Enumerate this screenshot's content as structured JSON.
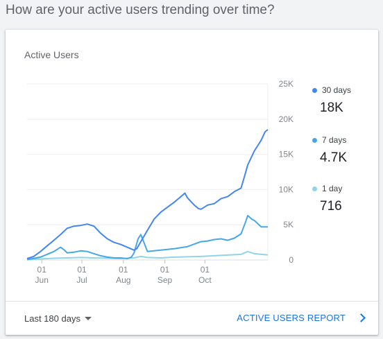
{
  "question": "How are your active users trending over time?",
  "card": {
    "title": "Active Users",
    "range_label": "Last 180 days",
    "report_link": "ACTIVE USERS REPORT"
  },
  "legend": [
    {
      "name": "30 days",
      "value": "18K",
      "color": "#4285f4"
    },
    {
      "name": "7 days",
      "value": "4.7K",
      "color": "#46a7e8"
    },
    {
      "name": "1 day",
      "value": "716",
      "color": "#8fd4e8"
    }
  ],
  "chart_data": {
    "type": "line",
    "title": "Active Users",
    "ylim": [
      0,
      25000
    ],
    "y_ticks": [
      0,
      5000,
      10000,
      15000,
      20000,
      25000
    ],
    "y_tick_labels": [
      "0",
      "5K",
      "10K",
      "15K",
      "20K",
      "25K"
    ],
    "x_tick_labels": [
      {
        "x": 11,
        "day": "01",
        "month": "Jun"
      },
      {
        "x": 41,
        "day": "01",
        "month": "Jul"
      },
      {
        "x": 72,
        "day": "01",
        "month": "Aug"
      },
      {
        "x": 103,
        "day": "01",
        "month": "Sep"
      },
      {
        "x": 133,
        "day": "01",
        "month": "Oct"
      }
    ],
    "x_unit": "day index",
    "xlim": [
      0,
      180
    ],
    "grid": true,
    "legend_position": "right",
    "series": [
      {
        "name": "30 days",
        "color": "#4285f4",
        "points": [
          [
            0,
            200
          ],
          [
            5,
            500
          ],
          [
            10,
            1200
          ],
          [
            15,
            2000
          ],
          [
            20,
            2800
          ],
          [
            25,
            3600
          ],
          [
            30,
            4500
          ],
          [
            35,
            4800
          ],
          [
            40,
            4900
          ],
          [
            45,
            5100
          ],
          [
            50,
            4800
          ],
          [
            55,
            3800
          ],
          [
            60,
            3000
          ],
          [
            65,
            2500
          ],
          [
            70,
            2200
          ],
          [
            75,
            1800
          ],
          [
            80,
            1400
          ],
          [
            82,
            1600
          ],
          [
            85,
            2600
          ],
          [
            90,
            4200
          ],
          [
            95,
            5800
          ],
          [
            100,
            6800
          ],
          [
            105,
            7500
          ],
          [
            110,
            8200
          ],
          [
            115,
            9000
          ],
          [
            118,
            9500
          ],
          [
            120,
            8800
          ],
          [
            125,
            7800
          ],
          [
            128,
            7300
          ],
          [
            130,
            7200
          ],
          [
            135,
            7800
          ],
          [
            140,
            8000
          ],
          [
            145,
            8700
          ],
          [
            150,
            9000
          ],
          [
            155,
            9700
          ],
          [
            160,
            10200
          ],
          [
            162,
            11500
          ],
          [
            165,
            13500
          ],
          [
            170,
            15500
          ],
          [
            175,
            17000
          ],
          [
            178,
            18200
          ],
          [
            180,
            18500
          ]
        ]
      },
      {
        "name": "7 days",
        "color": "#46a7e8",
        "points": [
          [
            0,
            50
          ],
          [
            10,
            400
          ],
          [
            15,
            800
          ],
          [
            20,
            1200
          ],
          [
            25,
            1800
          ],
          [
            28,
            1400
          ],
          [
            30,
            1000
          ],
          [
            35,
            1100
          ],
          [
            40,
            1300
          ],
          [
            45,
            1200
          ],
          [
            50,
            900
          ],
          [
            55,
            600
          ],
          [
            60,
            400
          ],
          [
            65,
            300
          ],
          [
            70,
            300
          ],
          [
            75,
            200
          ],
          [
            78,
            400
          ],
          [
            80,
            1000
          ],
          [
            83,
            3000
          ],
          [
            85,
            3600
          ],
          [
            88,
            2200
          ],
          [
            90,
            1200
          ],
          [
            95,
            1300
          ],
          [
            100,
            1400
          ],
          [
            110,
            1600
          ],
          [
            120,
            1900
          ],
          [
            130,
            2600
          ],
          [
            135,
            2700
          ],
          [
            140,
            2900
          ],
          [
            145,
            3000
          ],
          [
            150,
            2800
          ],
          [
            155,
            3100
          ],
          [
            160,
            3700
          ],
          [
            163,
            5200
          ],
          [
            165,
            6300
          ],
          [
            168,
            5800
          ],
          [
            170,
            5600
          ],
          [
            175,
            4700
          ],
          [
            180,
            4700
          ]
        ]
      },
      {
        "name": "1 day",
        "color": "#8fd4e8",
        "points": [
          [
            0,
            50
          ],
          [
            10,
            150
          ],
          [
            20,
            250
          ],
          [
            30,
            300
          ],
          [
            40,
            350
          ],
          [
            50,
            300
          ],
          [
            60,
            250
          ],
          [
            70,
            200
          ],
          [
            80,
            300
          ],
          [
            85,
            500
          ],
          [
            90,
            350
          ],
          [
            100,
            300
          ],
          [
            110,
            400
          ],
          [
            120,
            450
          ],
          [
            130,
            500
          ],
          [
            140,
            600
          ],
          [
            150,
            700
          ],
          [
            160,
            800
          ],
          [
            165,
            1200
          ],
          [
            170,
            900
          ],
          [
            175,
            800
          ],
          [
            180,
            716
          ]
        ]
      }
    ]
  }
}
